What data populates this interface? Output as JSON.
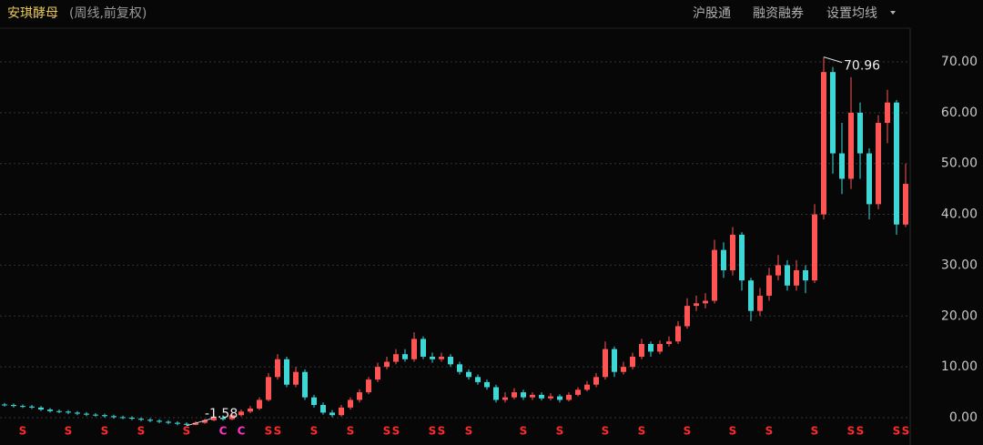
{
  "header": {
    "title": "安琪酵母",
    "subtitle": "(周线,前复权)",
    "links": [
      "沪股通",
      "融资融券",
      "设置均线"
    ]
  },
  "chart_data": {
    "type": "candlestick",
    "open": [
      2.6,
      2.5,
      2.3,
      2.2,
      2.0,
      1.6,
      1.3,
      1.2,
      1.0,
      0.8,
      0.6,
      0.5,
      0.3,
      0.1,
      0.0,
      -0.2,
      -0.4,
      -0.6,
      -0.8,
      -1.0,
      -1.2,
      -1.4,
      -1.0,
      -0.5,
      0.0,
      -0.3,
      0.5,
      1.2,
      1.8,
      3.5,
      8.0,
      11.5,
      6.5,
      9.0,
      4.0,
      2.5,
      1.0,
      0.5,
      2.0,
      3.5,
      5.0,
      7.5,
      10.0,
      11.0,
      12.5,
      11.5,
      15.5,
      12.0,
      11.5,
      12.0,
      10.5,
      9.0,
      8.0,
      7.0,
      6.0,
      3.5,
      4.0,
      5.0,
      4.0,
      4.5,
      3.8,
      4.2,
      3.5,
      4.5,
      5.5,
      6.5,
      8.0,
      13.5,
      9.0,
      10.0,
      12.0,
      14.5,
      13.0,
      14.5,
      15.0,
      18.0,
      22.0,
      22.5,
      23.0,
      33.0,
      29.0,
      36.0,
      27.0,
      21.0,
      24.0,
      28.0,
      30.0,
      26.0,
      29.0,
      27.0,
      40.0,
      68.0,
      52.0,
      47.0,
      60.0,
      52.0,
      42.0,
      58.0,
      62.0,
      38.0
    ],
    "high": [
      2.9,
      2.8,
      2.6,
      2.5,
      2.3,
      1.9,
      1.6,
      1.5,
      1.3,
      1.1,
      0.9,
      0.8,
      0.6,
      0.4,
      0.3,
      0.1,
      -0.1,
      -0.3,
      -0.5,
      -0.7,
      -0.9,
      -0.7,
      -0.2,
      0.4,
      0.5,
      0.9,
      1.6,
      2.3,
      4.0,
      8.8,
      12.5,
      12.0,
      10.0,
      9.5,
      4.5,
      3.0,
      1.5,
      2.5,
      4.0,
      5.6,
      8.0,
      10.8,
      12.0,
      13.5,
      13.5,
      16.8,
      16.0,
      12.8,
      12.8,
      12.5,
      11.0,
      9.5,
      8.5,
      7.5,
      6.5,
      5.0,
      5.8,
      5.5,
      5.0,
      5.0,
      4.8,
      4.6,
      5.0,
      6.0,
      7.2,
      8.8,
      15.0,
      14.0,
      11.0,
      12.8,
      15.5,
      15.0,
      15.2,
      16.0,
      19.0,
      23.5,
      24.0,
      24.5,
      35.0,
      34.5,
      37.5,
      36.5,
      27.5,
      25.5,
      29.5,
      32.0,
      31.0,
      31.0,
      30.0,
      42.0,
      70.96,
      69.0,
      58.0,
      67.0,
      62.0,
      53.0,
      59.5,
      64.5,
      62.5,
      50.0
    ],
    "low": [
      2.2,
      2.0,
      1.9,
      1.7,
      1.3,
      1.0,
      0.9,
      0.7,
      0.5,
      0.3,
      0.2,
      0.0,
      -0.2,
      -0.3,
      -0.5,
      -0.7,
      -0.9,
      -1.1,
      -1.3,
      -1.5,
      -1.58,
      -1.5,
      -1.2,
      -0.7,
      -0.6,
      -0.5,
      0.2,
      0.9,
      1.5,
      3.2,
      7.5,
      6.0,
      6.0,
      3.5,
      2.0,
      0.6,
      0.1,
      0.2,
      1.6,
      3.0,
      4.6,
      7.0,
      9.5,
      10.5,
      11.0,
      11.0,
      11.5,
      10.8,
      11.0,
      10.0,
      8.5,
      7.5,
      6.5,
      5.5,
      3.0,
      3.0,
      3.6,
      3.5,
      3.5,
      3.4,
      3.4,
      3.0,
      3.2,
      4.2,
      5.2,
      6.0,
      7.5,
      8.0,
      8.5,
      9.5,
      11.5,
      12.0,
      12.5,
      14.0,
      14.5,
      17.5,
      21.0,
      21.5,
      22.5,
      27.5,
      28.0,
      25.0,
      19.0,
      20.0,
      23.0,
      27.0,
      25.0,
      25.0,
      24.5,
      26.5,
      39.0,
      48.0,
      44.0,
      45.0,
      47.0,
      39.0,
      41.0,
      54.0,
      36.0,
      37.5
    ],
    "close": [
      2.5,
      2.3,
      2.2,
      2.0,
      1.6,
      1.3,
      1.2,
      1.0,
      0.8,
      0.6,
      0.5,
      0.3,
      0.1,
      0.0,
      -0.2,
      -0.4,
      -0.6,
      -0.8,
      -1.0,
      -1.2,
      -1.4,
      -1.0,
      -0.5,
      0.0,
      -0.3,
      0.5,
      1.2,
      1.8,
      3.5,
      8.0,
      11.5,
      6.5,
      9.0,
      4.0,
      2.5,
      1.0,
      0.5,
      2.0,
      3.5,
      5.0,
      7.5,
      10.0,
      11.0,
      12.5,
      11.5,
      15.5,
      12.0,
      11.5,
      12.0,
      10.5,
      9.0,
      8.0,
      7.0,
      6.0,
      3.5,
      4.0,
      5.0,
      4.0,
      4.5,
      3.8,
      4.2,
      3.5,
      4.5,
      5.5,
      6.5,
      8.0,
      13.5,
      9.0,
      10.0,
      12.0,
      14.5,
      13.0,
      14.5,
      15.0,
      18.0,
      22.0,
      22.5,
      23.0,
      33.0,
      29.0,
      36.0,
      27.0,
      21.0,
      24.0,
      28.0,
      30.0,
      26.0,
      29.0,
      27.0,
      40.0,
      68.0,
      52.0,
      47.0,
      60.0,
      52.0,
      42.0,
      58.0,
      62.0,
      38.0,
      46.0
    ],
    "markers": [
      null,
      null,
      "S",
      null,
      null,
      null,
      null,
      "S",
      null,
      null,
      null,
      "S",
      null,
      null,
      null,
      "S",
      null,
      null,
      null,
      null,
      "S",
      null,
      null,
      null,
      "C",
      null,
      "C",
      null,
      null,
      "S",
      "S",
      null,
      null,
      null,
      "S",
      null,
      null,
      null,
      "S",
      null,
      null,
      null,
      "S",
      "S",
      null,
      null,
      null,
      "S",
      "S",
      null,
      null,
      "S",
      null,
      null,
      null,
      null,
      null,
      "S",
      null,
      null,
      null,
      "S",
      null,
      null,
      null,
      null,
      "S",
      null,
      null,
      null,
      "S",
      null,
      null,
      null,
      null,
      "S",
      null,
      null,
      null,
      null,
      "S",
      null,
      null,
      null,
      "S",
      null,
      null,
      null,
      null,
      "S",
      null,
      null,
      null,
      "S",
      "S",
      null,
      null,
      null,
      "S",
      "S"
    ],
    "marker_colors": {
      "S": "#ff2a2a",
      "C": "#ff33cc"
    },
    "up_color": "#ff5454",
    "down_color": "#3fd6d6",
    "ylim": [
      -3.76,
      76.8
    ],
    "yticks": [
      {
        "value": 0,
        "label": "0.00"
      },
      {
        "value": 10,
        "label": "10.00"
      },
      {
        "value": 20,
        "label": "20.00"
      },
      {
        "value": 30,
        "label": "30.00"
      },
      {
        "value": 40,
        "label": "40.00"
      },
      {
        "value": 50,
        "label": "50.00"
      },
      {
        "value": 60,
        "label": "60.00"
      },
      {
        "value": 70,
        "label": "70.00"
      }
    ],
    "grid": true
  }
}
